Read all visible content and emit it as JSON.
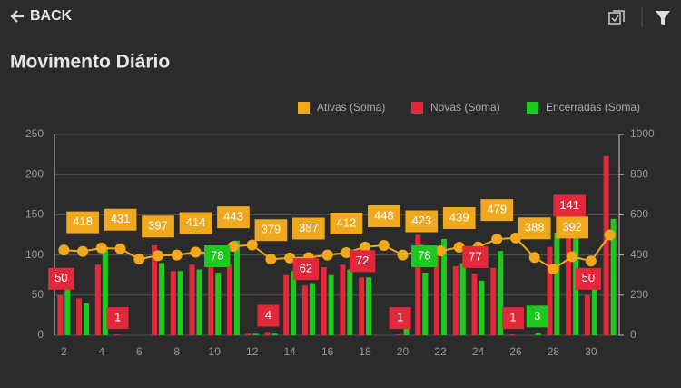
{
  "header": {
    "back": "BACK"
  },
  "chart_data": {
    "type": "bar-line",
    "title": "Movimento Diário",
    "categories": [
      "2",
      null,
      "4",
      null,
      "6",
      null,
      "8",
      null,
      "10",
      null,
      "12",
      null,
      "14",
      null,
      "16",
      null,
      "18",
      null,
      "20",
      null,
      "22",
      null,
      "24",
      null,
      "26",
      null,
      "28",
      null,
      "30",
      null
    ],
    "series": [
      {
        "name": "Ativas (Soma)",
        "color": "#f0a81c",
        "kind": "line",
        "axis": "y2",
        "values": [
          425,
          418,
          435,
          431,
          380,
          397,
          400,
          414,
          410,
          443,
          450,
          379,
          385,
          387,
          400,
          412,
          440,
          448,
          400,
          423,
          420,
          439,
          440,
          479,
          485,
          388,
          330,
          392,
          370,
          500
        ],
        "value_labels": [
          null,
          "418",
          null,
          "431",
          null,
          "397",
          null,
          "414",
          null,
          "443",
          null,
          "379",
          null,
          "387",
          null,
          "412",
          null,
          "448",
          null,
          "423",
          null,
          "439",
          null,
          "479",
          null,
          "388",
          null,
          "392",
          null,
          null
        ]
      },
      {
        "name": "Novas (Soma)",
        "color": "#e3283c",
        "kind": "bar",
        "values": [
          50,
          46,
          88,
          1,
          0,
          112,
          80,
          88,
          90,
          88,
          2,
          4,
          75,
          62,
          85,
          88,
          72,
          0,
          1,
          125,
          98,
          86,
          77,
          84,
          1,
          0,
          110,
          141,
          50,
          223
        ],
        "value_labels": [
          "50",
          null,
          null,
          "1",
          null,
          null,
          null,
          null,
          null,
          null,
          null,
          "4",
          null,
          "62",
          null,
          null,
          "72",
          null,
          "1",
          null,
          null,
          null,
          "77",
          null,
          "1",
          null,
          null,
          "141",
          "50",
          null
        ]
      },
      {
        "name": "Encerradas (Soma)",
        "color": "#1ec81e",
        "kind": "bar",
        "values": [
          60,
          40,
          110,
          0,
          0,
          90,
          80,
          82,
          78,
          118,
          2,
          2,
          80,
          65,
          75,
          82,
          72,
          0,
          10,
          78,
          120,
          90,
          68,
          105,
          0,
          3,
          128,
          155,
          60,
          145
        ],
        "value_labels": [
          null,
          null,
          null,
          null,
          null,
          null,
          null,
          null,
          "78",
          null,
          null,
          null,
          null,
          null,
          null,
          null,
          null,
          null,
          null,
          "78",
          null,
          null,
          null,
          null,
          null,
          "3",
          null,
          null,
          null,
          null
        ]
      }
    ],
    "ylim": [
      0,
      250
    ],
    "yticks": [
      0,
      50,
      100,
      150,
      200,
      250
    ],
    "y2lim": [
      0,
      1000
    ],
    "y2ticks": [
      0,
      200,
      400,
      600,
      800,
      1000
    ],
    "grid": true
  }
}
